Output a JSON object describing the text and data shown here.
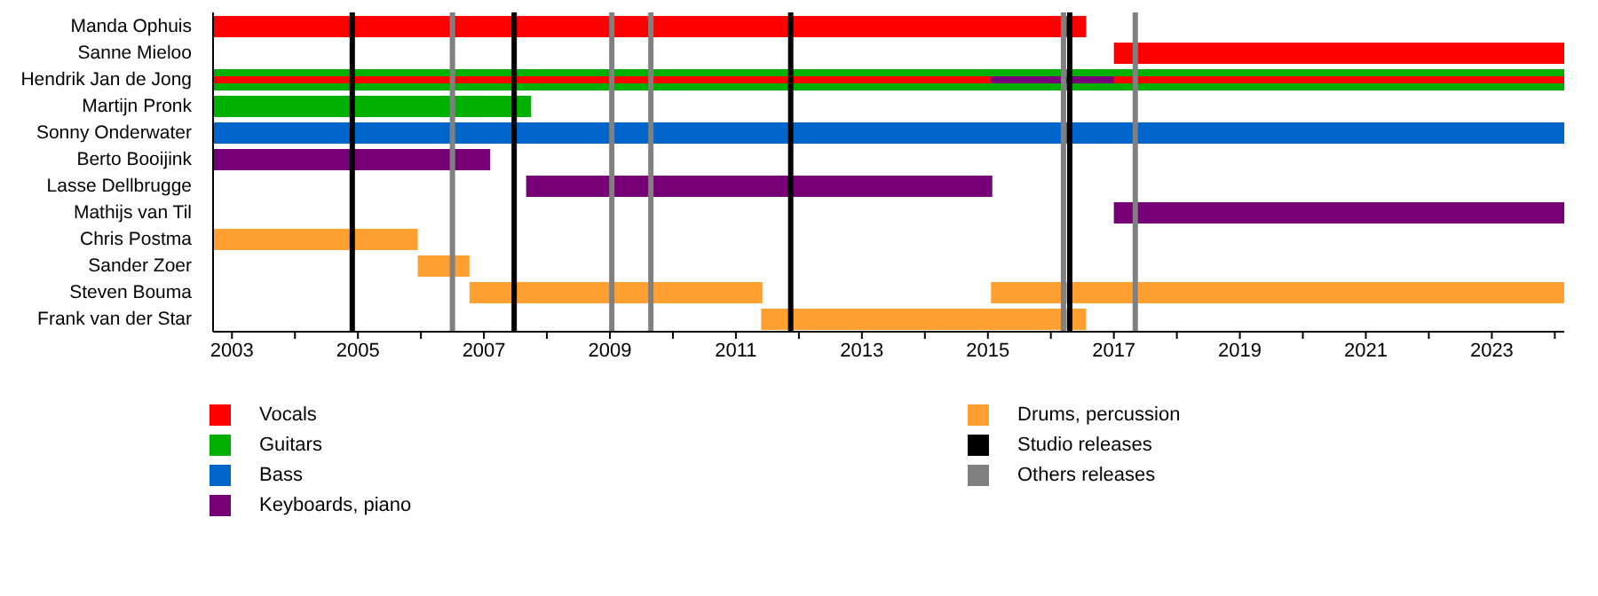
{
  "chart_data": {
    "type": "bar",
    "orientation": "horizontal",
    "categories": [
      "Manda Ophuis",
      "Sanne Mieloo",
      "Hendrik Jan de Jong",
      "Martijn Pronk",
      "Sonny Onderwater",
      "Berto Booijink",
      "Lasse Dellbrugge",
      "Mathijs van Til",
      "Chris Postma",
      "Sander Zoer",
      "Steven Bouma",
      "Frank van der Star"
    ],
    "series": [
      {
        "name": "Vocals",
        "color": "#ff0000",
        "base": [
          2002.7,
          2017.0,
          2002.7,
          null,
          null,
          null,
          null,
          null,
          null,
          null,
          null,
          null
        ],
        "values": [
          13.86,
          7.15,
          21.45,
          null,
          null,
          null,
          null,
          null,
          null,
          null,
          null,
          null
        ]
      },
      {
        "name": "Guitars",
        "color": "#00b000",
        "base": [
          null,
          null,
          2002.7,
          2002.7,
          null,
          null,
          null,
          null,
          null,
          null,
          null,
          null
        ],
        "values": [
          null,
          null,
          21.45,
          5.05,
          null,
          null,
          null,
          null,
          null,
          null,
          null,
          null
        ]
      },
      {
        "name": "Bass",
        "color": "#0066cc",
        "base": [
          null,
          null,
          null,
          null,
          2002.7,
          null,
          null,
          null,
          null,
          null,
          null,
          null
        ],
        "values": [
          null,
          null,
          null,
          null,
          21.45,
          null,
          null,
          null,
          null,
          null,
          null,
          null
        ]
      },
      {
        "name": "Keyboards, piano",
        "color": "#770077",
        "base": [
          null,
          null,
          2015.05,
          null,
          null,
          2002.7,
          2007.67,
          2017.0,
          null,
          null,
          null,
          null
        ],
        "values": [
          null,
          null,
          1.95,
          null,
          null,
          4.4,
          7.4,
          7.15,
          null,
          null,
          null,
          null
        ]
      },
      {
        "name": "Drums, percussion",
        "color": "#ffa030",
        "base": [
          null,
          null,
          null,
          null,
          null,
          null,
          null,
          null,
          2002.7,
          2005.95,
          2006.77,
          2011.4
        ],
        "values": [
          null,
          null,
          null,
          null,
          null,
          null,
          null,
          null,
          3.25,
          0.82,
          4.65,
          5.16
        ]
      },
      {
        "color": "#ffa030",
        "base": [
          null,
          null,
          null,
          null,
          null,
          null,
          null,
          null,
          null,
          null,
          2015.05,
          null
        ],
        "values": [
          null,
          null,
          null,
          null,
          null,
          null,
          null,
          null,
          null,
          null,
          9.1,
          null
        ]
      }
    ],
    "xlim": [
      2002.7,
      2024.15
    ],
    "xticks": [
      2003,
      {
        "value": 2004,
        "label": null
      },
      2005,
      {
        "value": 2006,
        "label": null
      },
      2007,
      {
        "value": 2008,
        "label": null
      },
      2009,
      {
        "value": 2010,
        "label": null
      },
      2011,
      {
        "value": 2012,
        "label": null
      },
      2013,
      {
        "value": 2014,
        "label": null
      },
      2015,
      {
        "value": 2016,
        "label": null
      },
      2017,
      {
        "value": 2018,
        "label": null
      },
      2019,
      {
        "value": 2020,
        "label": null
      },
      2021,
      {
        "value": 2022,
        "label": null
      },
      2023,
      {
        "value": 2024,
        "label": null
      }
    ],
    "ref_lines": [
      {
        "axis": "x",
        "value": 2004.91,
        "label": "Studio releases",
        "color": "#000000"
      },
      {
        "axis": "x",
        "value": 2007.48,
        "color": "#000000"
      },
      {
        "axis": "x",
        "value": 2011.87,
        "color": "#000000"
      },
      {
        "axis": "x",
        "value": 2016.3,
        "color": "#000000"
      },
      {
        "axis": "x",
        "value": 2006.5,
        "label": "Others releases",
        "color": "#808080"
      },
      {
        "axis": "x",
        "value": 2009.03,
        "color": "#808080"
      },
      {
        "axis": "x",
        "value": 2009.65,
        "color": "#808080"
      },
      {
        "axis": "x",
        "value": 2016.2,
        "color": "#808080"
      },
      {
        "axis": "x",
        "value": 2017.34,
        "color": "#808080"
      }
    ],
    "legend": "bottom"
  }
}
